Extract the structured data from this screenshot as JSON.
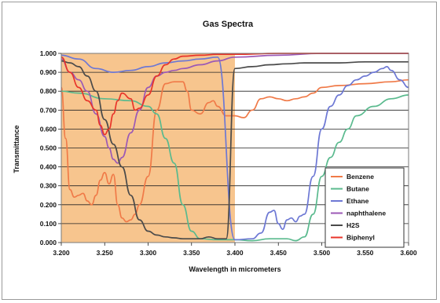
{
  "chart_data": {
    "type": "line",
    "title": "Gas Spectra",
    "xlabel": "Wavelength in micrometers",
    "ylabel": "Transmittance",
    "xlim": [
      3.2,
      3.6
    ],
    "ylim": [
      0,
      1
    ],
    "xticks": [
      "3.200",
      "3.250",
      "3.300",
      "3.350",
      "3.400",
      "3.450",
      "3.500",
      "3.550",
      "3.600"
    ],
    "yticks": [
      "0.000",
      "0.100",
      "0.200",
      "0.300",
      "0.400",
      "0.500",
      "0.600",
      "0.700",
      "0.800",
      "0.900",
      "1.000"
    ],
    "grid": "horizontal",
    "legend_position": "bottom-right",
    "shaded_region": {
      "x": [
        3.2,
        3.4
      ],
      "color": "#f7c58e"
    },
    "series": [
      {
        "name": "Benzene",
        "color": "#f07a48",
        "points": [
          [
            3.2,
            0.82
          ],
          [
            3.205,
            0.55
          ],
          [
            3.21,
            0.28
          ],
          [
            3.215,
            0.24
          ],
          [
            3.22,
            0.25
          ],
          [
            3.225,
            0.26
          ],
          [
            3.23,
            0.22
          ],
          [
            3.235,
            0.2
          ],
          [
            3.24,
            0.25
          ],
          [
            3.245,
            0.33
          ],
          [
            3.25,
            0.37
          ],
          [
            3.255,
            0.31
          ],
          [
            3.26,
            0.36
          ],
          [
            3.265,
            0.2
          ],
          [
            3.27,
            0.13
          ],
          [
            3.275,
            0.11
          ],
          [
            3.28,
            0.12
          ],
          [
            3.285,
            0.15
          ],
          [
            3.29,
            0.2
          ],
          [
            3.3,
            0.35
          ],
          [
            3.31,
            0.7
          ],
          [
            3.32,
            0.84
          ],
          [
            3.33,
            0.85
          ],
          [
            3.34,
            0.85
          ],
          [
            3.345,
            0.8
          ],
          [
            3.35,
            0.7
          ],
          [
            3.36,
            0.68
          ],
          [
            3.37,
            0.74
          ],
          [
            3.375,
            0.75
          ],
          [
            3.38,
            0.72
          ],
          [
            3.39,
            0.67
          ],
          [
            3.4,
            0.67
          ],
          [
            3.41,
            0.66
          ],
          [
            3.42,
            0.7
          ],
          [
            3.43,
            0.76
          ],
          [
            3.44,
            0.77
          ],
          [
            3.45,
            0.76
          ],
          [
            3.46,
            0.75
          ],
          [
            3.47,
            0.76
          ],
          [
            3.48,
            0.77
          ],
          [
            3.49,
            0.79
          ],
          [
            3.5,
            0.82
          ],
          [
            3.52,
            0.83
          ],
          [
            3.55,
            0.84
          ],
          [
            3.58,
            0.85
          ],
          [
            3.6,
            0.86
          ]
        ]
      },
      {
        "name": "Butane",
        "color": "#5aba8e",
        "points": [
          [
            3.2,
            0.8
          ],
          [
            3.22,
            0.79
          ],
          [
            3.25,
            0.76
          ],
          [
            3.28,
            0.75
          ],
          [
            3.3,
            0.72
          ],
          [
            3.31,
            0.68
          ],
          [
            3.32,
            0.55
          ],
          [
            3.33,
            0.42
          ],
          [
            3.34,
            0.2
          ],
          [
            3.35,
            0.06
          ],
          [
            3.36,
            0.02
          ],
          [
            3.38,
            0.015
          ],
          [
            3.4,
            0.015
          ],
          [
            3.42,
            0.01
          ],
          [
            3.44,
            0.02
          ],
          [
            3.45,
            0.02
          ],
          [
            3.46,
            0.02
          ],
          [
            3.47,
            0.01
          ],
          [
            3.48,
            0.03
          ],
          [
            3.49,
            0.15
          ],
          [
            3.5,
            0.35
          ],
          [
            3.51,
            0.45
          ],
          [
            3.52,
            0.53
          ],
          [
            3.53,
            0.6
          ],
          [
            3.54,
            0.67
          ],
          [
            3.56,
            0.72
          ],
          [
            3.58,
            0.76
          ],
          [
            3.6,
            0.78
          ]
        ]
      },
      {
        "name": "Ethane",
        "color": "#6d78d4",
        "points": [
          [
            3.2,
            0.99
          ],
          [
            3.22,
            0.97
          ],
          [
            3.24,
            0.92
          ],
          [
            3.26,
            0.9
          ],
          [
            3.28,
            0.91
          ],
          [
            3.3,
            0.93
          ],
          [
            3.32,
            0.95
          ],
          [
            3.34,
            0.96
          ],
          [
            3.36,
            0.97
          ],
          [
            3.38,
            0.98
          ],
          [
            3.4,
            0.015
          ],
          [
            3.42,
            0.02
          ],
          [
            3.43,
            0.05
          ],
          [
            3.44,
            0.16
          ],
          [
            3.445,
            0.17
          ],
          [
            3.45,
            0.1
          ],
          [
            3.455,
            0.07
          ],
          [
            3.46,
            0.12
          ],
          [
            3.465,
            0.13
          ],
          [
            3.47,
            0.11
          ],
          [
            3.475,
            0.14
          ],
          [
            3.48,
            0.15
          ],
          [
            3.49,
            0.35
          ],
          [
            3.5,
            0.6
          ],
          [
            3.51,
            0.72
          ],
          [
            3.52,
            0.78
          ],
          [
            3.53,
            0.83
          ],
          [
            3.54,
            0.86
          ],
          [
            3.55,
            0.88
          ],
          [
            3.56,
            0.9
          ],
          [
            3.57,
            0.92
          ],
          [
            3.575,
            0.93
          ],
          [
            3.58,
            0.91
          ],
          [
            3.59,
            0.86
          ],
          [
            3.6,
            0.82
          ]
        ]
      },
      {
        "name": "naphthalene",
        "color": "#9b59b6",
        "points": [
          [
            3.2,
            0.97
          ],
          [
            3.21,
            0.9
          ],
          [
            3.22,
            0.86
          ],
          [
            3.23,
            0.8
          ],
          [
            3.24,
            0.68
          ],
          [
            3.25,
            0.56
          ],
          [
            3.255,
            0.5
          ],
          [
            3.26,
            0.44
          ],
          [
            3.265,
            0.42
          ],
          [
            3.27,
            0.45
          ],
          [
            3.28,
            0.58
          ],
          [
            3.29,
            0.7
          ],
          [
            3.3,
            0.82
          ],
          [
            3.31,
            0.88
          ],
          [
            3.32,
            0.9
          ],
          [
            3.33,
            0.91
          ],
          [
            3.34,
            0.92
          ],
          [
            3.36,
            0.94
          ],
          [
            3.38,
            0.96
          ],
          [
            3.4,
            0.98
          ],
          [
            3.45,
            0.99
          ],
          [
            3.5,
            1.0
          ],
          [
            3.55,
            1.0
          ],
          [
            3.6,
            1.0
          ]
        ]
      },
      {
        "name": "H2S",
        "color": "#4a4a4a",
        "points": [
          [
            3.2,
            0.96
          ],
          [
            3.21,
            0.95
          ],
          [
            3.22,
            0.93
          ],
          [
            3.23,
            0.88
          ],
          [
            3.24,
            0.8
          ],
          [
            3.25,
            0.65
          ],
          [
            3.26,
            0.52
          ],
          [
            3.27,
            0.4
          ],
          [
            3.28,
            0.25
          ],
          [
            3.29,
            0.12
          ],
          [
            3.3,
            0.06
          ],
          [
            3.31,
            0.04
          ],
          [
            3.32,
            0.03
          ],
          [
            3.33,
            0.025
          ],
          [
            3.34,
            0.02
          ],
          [
            3.36,
            0.02
          ],
          [
            3.37,
            0.03
          ],
          [
            3.38,
            0.02
          ],
          [
            3.39,
            0.02
          ],
          [
            3.4,
            0.92
          ],
          [
            3.42,
            0.93
          ],
          [
            3.44,
            0.94
          ],
          [
            3.46,
            0.945
          ],
          [
            3.48,
            0.95
          ],
          [
            3.5,
            0.95
          ],
          [
            3.52,
            0.95
          ],
          [
            3.55,
            0.955
          ],
          [
            3.6,
            0.955
          ]
        ]
      },
      {
        "name": "Biphenyl",
        "color": "#e8342a",
        "points": [
          [
            3.2,
            0.98
          ],
          [
            3.21,
            0.9
          ],
          [
            3.22,
            0.82
          ],
          [
            3.23,
            0.75
          ],
          [
            3.24,
            0.7
          ],
          [
            3.245,
            0.62
          ],
          [
            3.25,
            0.57
          ],
          [
            3.255,
            0.6
          ],
          [
            3.26,
            0.68
          ],
          [
            3.265,
            0.75
          ],
          [
            3.27,
            0.79
          ],
          [
            3.28,
            0.76
          ],
          [
            3.285,
            0.7
          ],
          [
            3.29,
            0.71
          ],
          [
            3.3,
            0.78
          ],
          [
            3.31,
            0.88
          ],
          [
            3.32,
            0.94
          ],
          [
            3.33,
            0.97
          ],
          [
            3.34,
            0.985
          ],
          [
            3.36,
            0.99
          ],
          [
            3.38,
            0.995
          ],
          [
            3.4,
            0.995
          ],
          [
            3.45,
            1.0
          ],
          [
            3.5,
            1.0
          ],
          [
            3.55,
            1.0
          ],
          [
            3.6,
            1.0
          ]
        ]
      }
    ]
  }
}
